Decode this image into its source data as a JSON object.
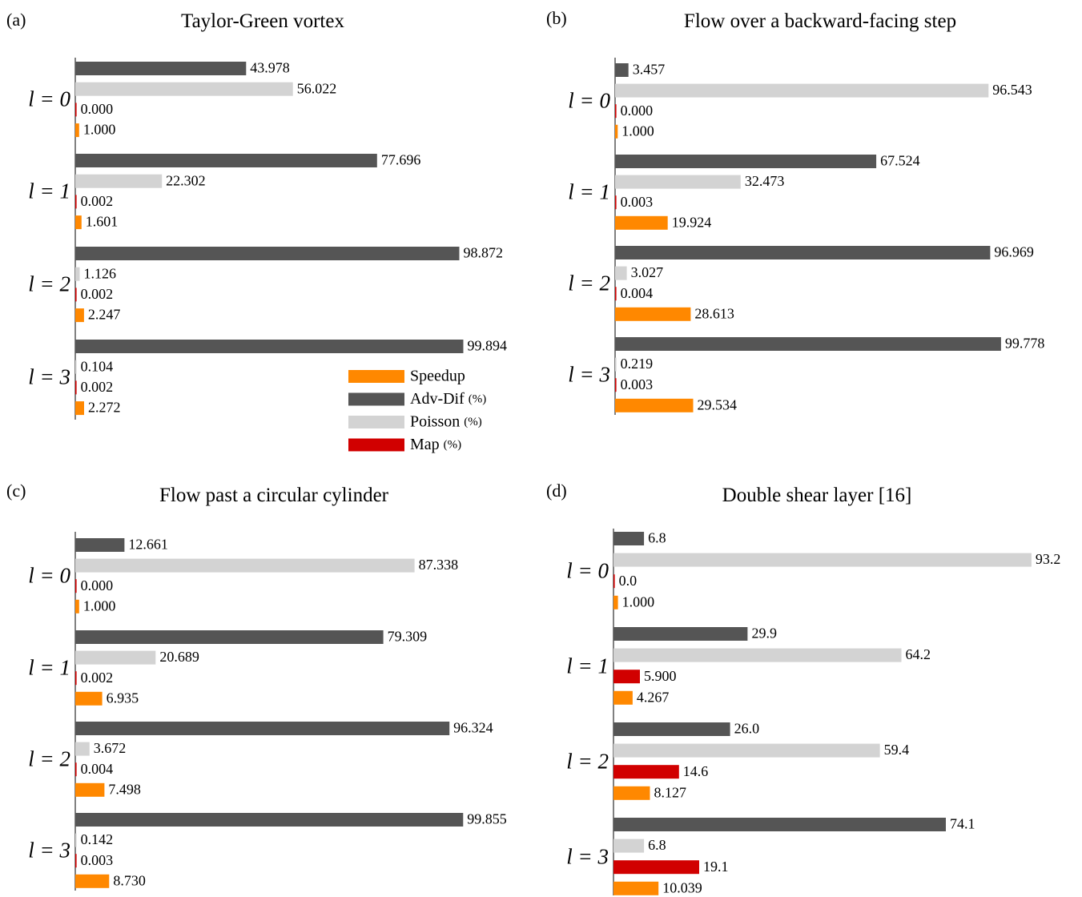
{
  "legend": {
    "items": [
      {
        "key": "speedup",
        "label": "Speedup",
        "unit": "",
        "color": "#FF8800"
      },
      {
        "key": "advdif",
        "label": "Adv-Dif",
        "unit": "(%)",
        "color": "#555555"
      },
      {
        "key": "poisson",
        "label": "Poisson",
        "unit": "(%)",
        "color": "#D3D3D3"
      },
      {
        "key": "map",
        "label": "Map",
        "unit": "(%)",
        "color": "#D10000"
      }
    ]
  },
  "chart_data": [
    {
      "type": "bar",
      "panel": "(a)",
      "title": "Taylor-Green vortex",
      "categories": [
        "l = 0",
        "l = 1",
        "l = 2",
        "l = 3"
      ],
      "series": [
        {
          "name": "Adv-Dif (%)",
          "key": "advdif",
          "labels": [
            "43.978",
            "77.696",
            "98.872",
            "99.894"
          ],
          "values": [
            43.978,
            77.696,
            98.872,
            99.894
          ]
        },
        {
          "name": "Poisson (%)",
          "key": "poisson",
          "labels": [
            "56.022",
            "22.302",
            "1.126",
            "0.104"
          ],
          "values": [
            56.022,
            22.302,
            1.126,
            0.104
          ]
        },
        {
          "name": "Map (%)",
          "key": "map",
          "labels": [
            "0.000",
            "0.002",
            "0.002",
            "0.002"
          ],
          "values": [
            0.0,
            0.002,
            0.002,
            0.002
          ]
        },
        {
          "name": "Speedup",
          "key": "speedup",
          "labels": [
            "1.000",
            "1.601",
            "2.247",
            "2.272"
          ],
          "values": [
            1.0,
            1.601,
            2.247,
            2.272
          ]
        }
      ]
    },
    {
      "type": "bar",
      "panel": "(b)",
      "title": "Flow over a backward-facing step",
      "categories": [
        "l = 0",
        "l = 1",
        "l = 2",
        "l = 3"
      ],
      "series": [
        {
          "name": "Adv-Dif (%)",
          "key": "advdif",
          "labels": [
            "3.457",
            "67.524",
            "96.969",
            "99.778"
          ],
          "values": [
            3.457,
            67.524,
            96.969,
            99.778
          ]
        },
        {
          "name": "Poisson (%)",
          "key": "poisson",
          "labels": [
            "96.543",
            "32.473",
            "3.027",
            "0.219"
          ],
          "values": [
            96.543,
            32.473,
            3.027,
            0.219
          ]
        },
        {
          "name": "Map (%)",
          "key": "map",
          "labels": [
            "0.000",
            "0.003",
            "0.004",
            "0.003"
          ],
          "values": [
            0.0,
            0.003,
            0.004,
            0.003
          ]
        },
        {
          "name": "Speedup",
          "key": "speedup",
          "labels": [
            "1.000",
            "19.924",
            "28.613",
            "29.534"
          ],
          "values": [
            1.0,
            19.924,
            28.613,
            29.534
          ]
        }
      ]
    },
    {
      "type": "bar",
      "panel": "(c)",
      "title": "Flow past a circular cylinder",
      "categories": [
        "l = 0",
        "l = 1",
        "l = 2",
        "l = 3"
      ],
      "series": [
        {
          "name": "Adv-Dif (%)",
          "key": "advdif",
          "labels": [
            "12.661",
            "79.309",
            "96.324",
            "99.855"
          ],
          "values": [
            12.661,
            79.309,
            96.324,
            99.855
          ]
        },
        {
          "name": "Poisson (%)",
          "key": "poisson",
          "labels": [
            "87.338",
            "20.689",
            "3.672",
            "0.142"
          ],
          "values": [
            87.338,
            20.689,
            3.672,
            0.142
          ]
        },
        {
          "name": "Map (%)",
          "key": "map",
          "labels": [
            "0.000",
            "0.002",
            "0.004",
            "0.003"
          ],
          "values": [
            0.0,
            0.002,
            0.004,
            0.003
          ]
        },
        {
          "name": "Speedup",
          "key": "speedup",
          "labels": [
            "1.000",
            "6.935",
            "7.498",
            "8.730"
          ],
          "values": [
            1.0,
            6.935,
            7.498,
            8.73
          ]
        }
      ]
    },
    {
      "type": "bar",
      "panel": "(d)",
      "title": "Double shear layer [16]",
      "categories": [
        "l = 0",
        "l = 1",
        "l = 2",
        "l = 3"
      ],
      "series": [
        {
          "name": "Adv-Dif (%)",
          "key": "advdif",
          "labels": [
            "6.8",
            "29.9",
            "26.0",
            "74.1"
          ],
          "values": [
            6.8,
            29.9,
            26.0,
            74.1
          ]
        },
        {
          "name": "Poisson (%)",
          "key": "poisson",
          "labels": [
            "93.2",
            "64.2",
            "59.4",
            "6.8"
          ],
          "values": [
            93.2,
            64.2,
            59.4,
            6.8
          ]
        },
        {
          "name": "Map (%)",
          "key": "map",
          "labels": [
            "0.0",
            "5.900",
            "14.6",
            "19.1"
          ],
          "values": [
            0.0,
            5.9,
            14.6,
            19.1
          ]
        },
        {
          "name": "Speedup",
          "key": "speedup",
          "labels": [
            "1.000",
            "4.267",
            "8.127",
            "10.039"
          ],
          "values": [
            1.0,
            4.267,
            8.127,
            10.039
          ]
        }
      ]
    }
  ]
}
